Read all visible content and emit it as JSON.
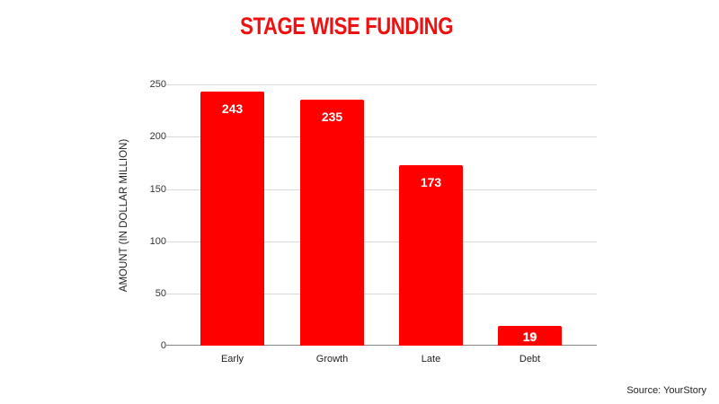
{
  "chart_data": {
    "type": "bar",
    "title": "STAGE WISE FUNDING",
    "xlabel": "",
    "ylabel": "AMOUNT (IN DOLLAR MILLION)",
    "categories": [
      "Early",
      "Growth",
      "Late",
      "Debt"
    ],
    "values": [
      243,
      235,
      173,
      19
    ],
    "data_labels": [
      "243",
      "235",
      "173",
      "19"
    ],
    "ylim": [
      0,
      250
    ],
    "yticks": [
      "0",
      "50",
      "100",
      "150",
      "200",
      "250"
    ],
    "grid": true,
    "legend": "none",
    "bar_color": "#ff0000",
    "title_color": "#ee1111"
  },
  "footer": {
    "source": "Source: YourStory"
  }
}
